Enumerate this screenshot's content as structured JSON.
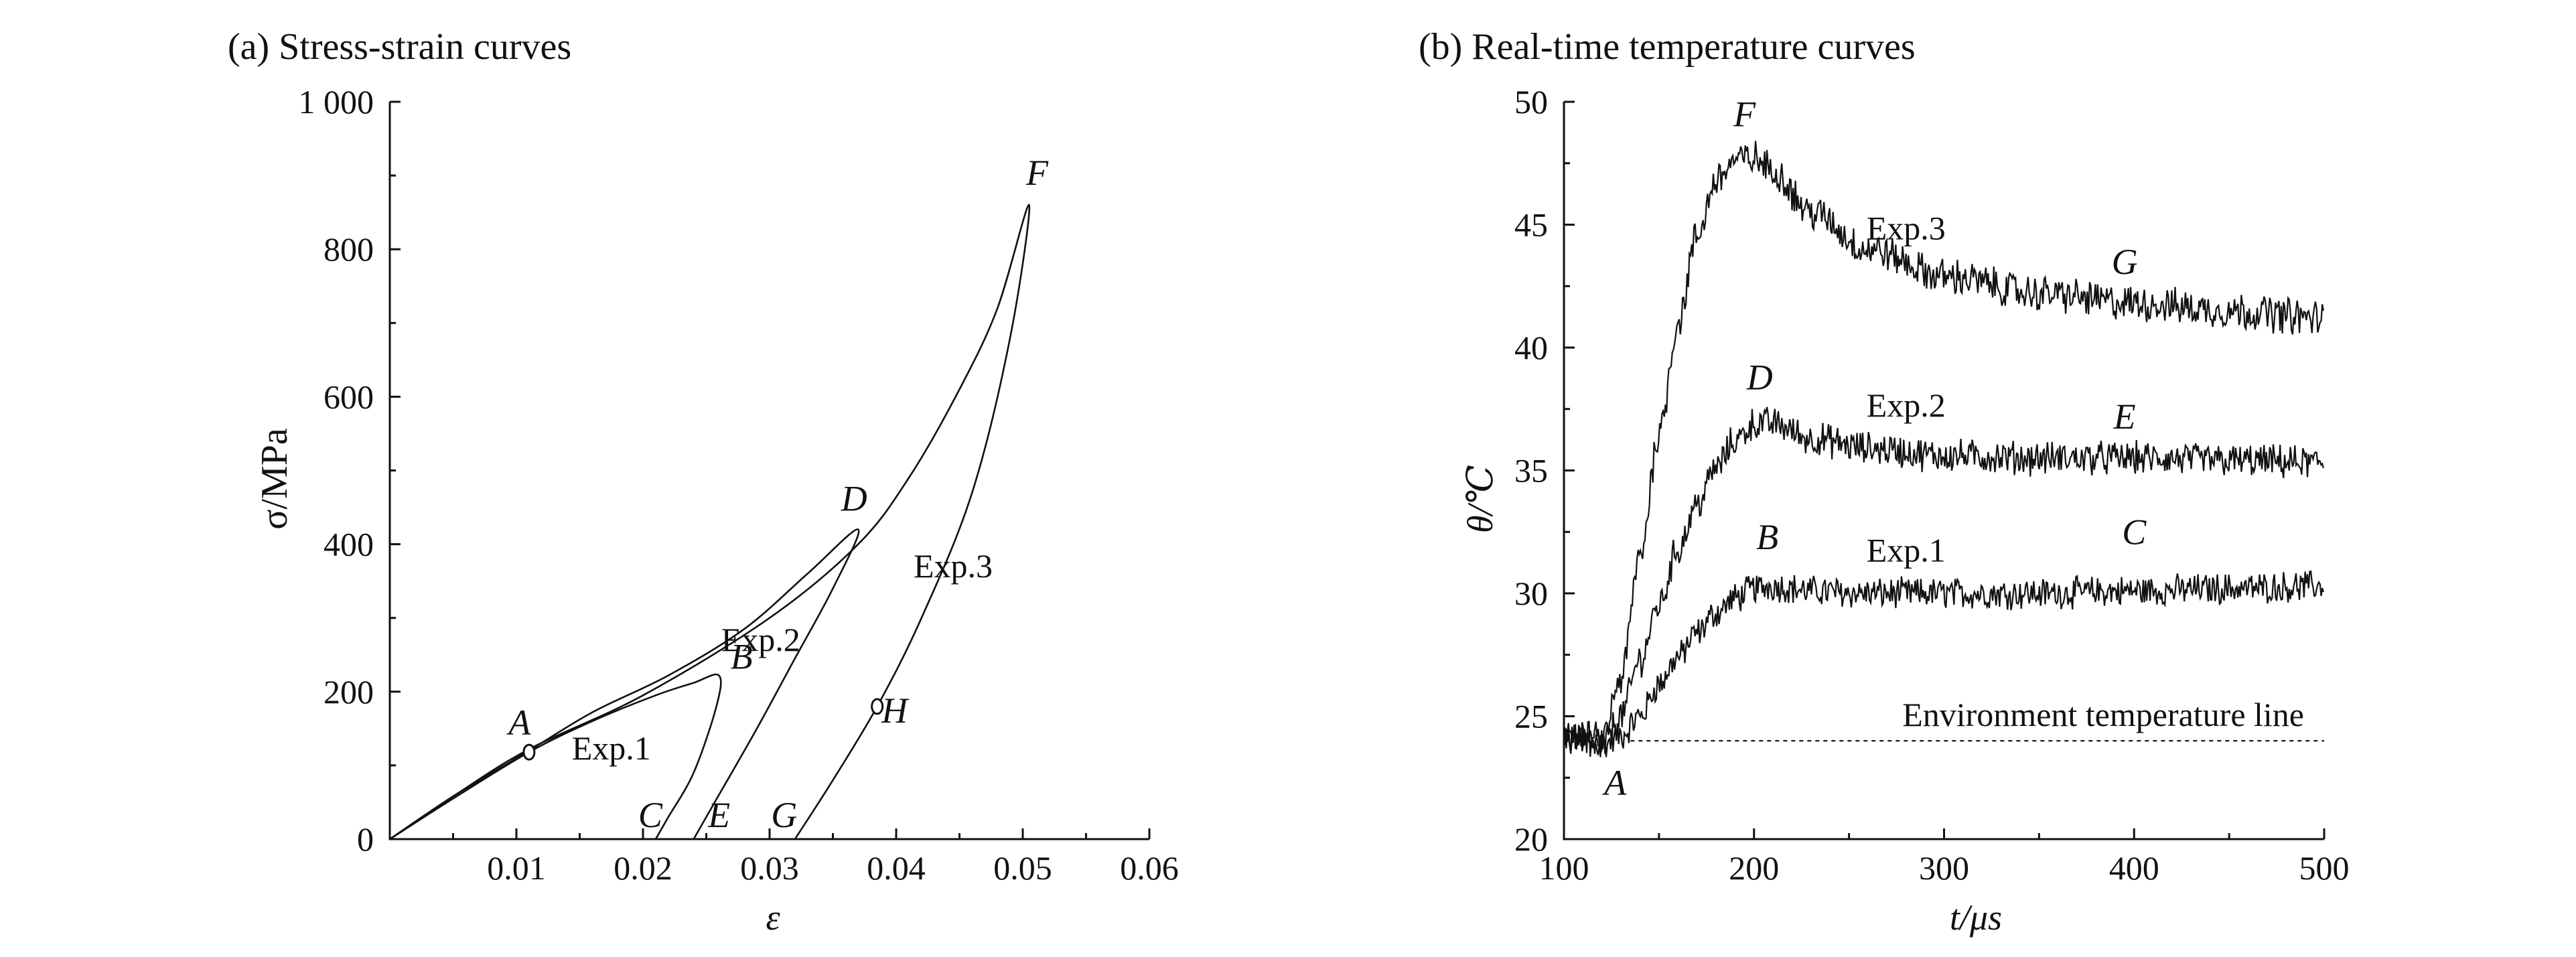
{
  "chart_data": [
    {
      "type": "line",
      "title": "(a) Stress-strain curves",
      "xlabel": "ε",
      "ylabel": "σ/MPa",
      "xlim": [
        0,
        0.06
      ],
      "ylim": [
        0,
        1000
      ],
      "x_ticks": [
        0.01,
        0.02,
        0.03,
        0.04,
        0.05,
        0.06
      ],
      "x_tick_labels": [
        "0.01",
        "0.02",
        "0.03",
        "0.04",
        "0.05",
        "0.06"
      ],
      "y_ticks": [
        0,
        200,
        400,
        600,
        800,
        1000
      ],
      "y_tick_labels": [
        "0",
        "200",
        "400",
        "600",
        "800",
        "1 000"
      ],
      "origin_label": "0",
      "series": [
        {
          "name": "Exp.1",
          "x": [
            0,
            0.005,
            0.011,
            0.016,
            0.021,
            0.024,
            0.026,
            0.0258,
            0.024,
            0.022,
            0.021
          ],
          "y": [
            0,
            55,
            118,
            160,
            195,
            212,
            222,
            180,
            90,
            30,
            0
          ]
        },
        {
          "name": "Exp.2",
          "x": [
            0,
            0.005,
            0.011,
            0.016,
            0.022,
            0.028,
            0.033,
            0.037,
            0.035,
            0.032,
            0.029,
            0.026,
            0.024
          ],
          "y": [
            0,
            58,
            120,
            172,
            222,
            285,
            360,
            420,
            340,
            245,
            150,
            60,
            0
          ]
        },
        {
          "name": "Exp.3",
          "x": [
            0,
            0.005,
            0.011,
            0.02,
            0.03,
            0.037,
            0.041,
            0.045,
            0.048,
            0.0505,
            0.049,
            0.046,
            0.042,
            0.0385,
            0.035,
            0.032
          ],
          "y": [
            0,
            58,
            122,
            195,
            300,
            400,
            490,
            610,
            720,
            860,
            680,
            470,
            300,
            180,
            80,
            0
          ]
        }
      ],
      "annotations": [
        {
          "label": "A",
          "x": 0.011,
          "y": 118,
          "marker": "circle"
        },
        {
          "label": "B",
          "x": 0.0262,
          "y": 222
        },
        {
          "label": "C",
          "x": 0.021,
          "y": 0
        },
        {
          "label": "D",
          "x": 0.037,
          "y": 420
        },
        {
          "label": "E",
          "x": 0.024,
          "y": 0
        },
        {
          "label": "F",
          "x": 0.0505,
          "y": 860
        },
        {
          "label": "G",
          "x": 0.032,
          "y": 0
        },
        {
          "label": "H",
          "x": 0.0385,
          "y": 180,
          "marker": "circle"
        }
      ],
      "series_labels": [
        {
          "text": "Exp.1",
          "x": 0.0175,
          "y": 108
        },
        {
          "text": "Exp.2",
          "x": 0.0293,
          "y": 255
        },
        {
          "text": "Exp.3",
          "x": 0.0445,
          "y": 355
        }
      ],
      "grid": false
    },
    {
      "type": "line",
      "title": "(b) Real-time temperature curves",
      "xlabel": "t/μs",
      "ylabel": "θ/℃",
      "xlim": [
        100,
        500
      ],
      "ylim": [
        20,
        50
      ],
      "x_ticks": [
        100,
        200,
        300,
        400,
        500
      ],
      "x_tick_labels": [
        "100",
        "200",
        "300",
        "400",
        "500"
      ],
      "y_ticks": [
        20,
        25,
        30,
        35,
        40,
        45,
        50
      ],
      "y_tick_labels": [
        "20",
        "25",
        "30",
        "35",
        "40",
        "45",
        "50"
      ],
      "series": [
        {
          "name": "Exp.1",
          "x": [
            100,
            120,
            130,
            140,
            150,
            160,
            170,
            180,
            190,
            200,
            210,
            230,
            260,
            300,
            350,
            400,
            450,
            500
          ],
          "y": [
            24.2,
            23.8,
            24.2,
            25.0,
            26.3,
            27.4,
            28.4,
            29.2,
            29.8,
            30.2,
            30.3,
            30.1,
            30.0,
            30.0,
            30.0,
            30.1,
            30.2,
            30.3
          ]
        },
        {
          "name": "Exp.2",
          "x": [
            100,
            120,
            130,
            140,
            150,
            160,
            170,
            180,
            190,
            200,
            210,
            230,
            260,
            300,
            350,
            400,
            450,
            500
          ],
          "y": [
            24.2,
            23.8,
            25.0,
            27.3,
            29.5,
            31.8,
            33.6,
            35.1,
            36.2,
            36.9,
            36.9,
            36.3,
            35.9,
            35.6,
            35.5,
            35.5,
            35.4,
            35.3
          ]
        },
        {
          "name": "Exp.3",
          "x": [
            100,
            120,
            130,
            140,
            150,
            160,
            170,
            180,
            190,
            200,
            210,
            230,
            260,
            300,
            350,
            400,
            450,
            500
          ],
          "y": [
            24.2,
            24.0,
            26.5,
            31.5,
            36.5,
            41.0,
            44.5,
            46.8,
            47.6,
            47.7,
            47.2,
            45.5,
            44.0,
            42.9,
            42.2,
            41.8,
            41.5,
            41.2
          ]
        }
      ],
      "reference_line": {
        "label": "Environment temperature line",
        "y": 24,
        "x_start": 135,
        "x_end": 500,
        "style": "dashed"
      },
      "annotations": [
        {
          "label": "A",
          "x": 127,
          "y": 21.8
        },
        {
          "label": "B",
          "x": 207,
          "y": 31.8
        },
        {
          "label": "C",
          "x": 400,
          "y": 32.0
        },
        {
          "label": "D",
          "x": 203,
          "y": 38.3
        },
        {
          "label": "E",
          "x": 395,
          "y": 36.7
        },
        {
          "label": "F",
          "x": 195,
          "y": 49.0
        },
        {
          "label": "G",
          "x": 395,
          "y": 43.0
        }
      ],
      "series_labels": [
        {
          "text": "Exp.1",
          "x": 280,
          "y": 31.3
        },
        {
          "text": "Exp.2",
          "x": 280,
          "y": 37.2
        },
        {
          "text": "Exp.3",
          "x": 280,
          "y": 44.4
        }
      ],
      "grid": false
    }
  ]
}
